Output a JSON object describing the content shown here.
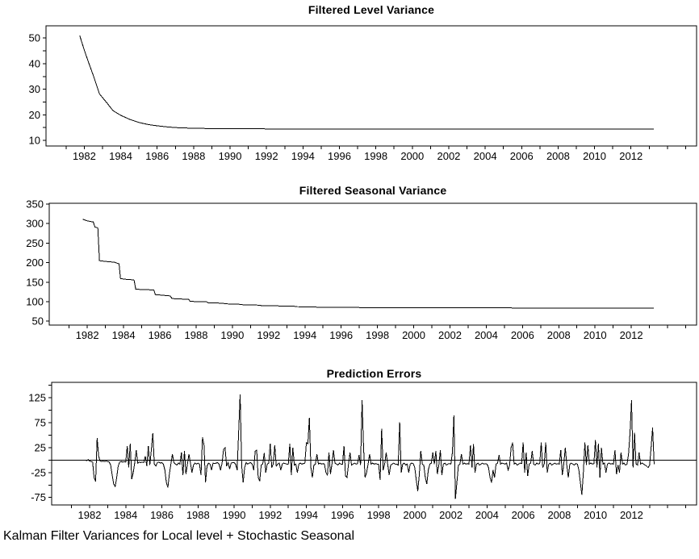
{
  "caption": "Kalman Filter Variances for Local level + Stochastic Seasonal",
  "style": {
    "background": "#ffffff",
    "line_color": "#000000",
    "axis_color": "#000000",
    "text_color": "#000000"
  },
  "chart_data": [
    {
      "type": "line",
      "title": "Filtered Level Variance",
      "xlabel": "",
      "ylabel": "",
      "xlim": [
        1979.9,
        2015.6
      ],
      "ylim": [
        7.8,
        54.8
      ],
      "grid": false,
      "legend": "none",
      "x_ticks": {
        "start": 1981,
        "end": 2015,
        "step": 1
      },
      "x_labels": [
        1982,
        1984,
        1986,
        1988,
        1990,
        1992,
        1994,
        1996,
        1998,
        2000,
        2002,
        2004,
        2006,
        2008,
        2010,
        2012
      ],
      "y_ticks": {
        "start": 10,
        "end": 50,
        "step": 5
      },
      "y_labels": [
        10,
        20,
        30,
        40,
        50
      ],
      "zero_line": false,
      "series": [
        {
          "name": "filtered-level-variance",
          "points": [
            [
              1981.75,
              51
            ],
            [
              1982.0,
              45.3
            ],
            [
              1982.25,
              40.2
            ],
            [
              1982.5,
              35.3
            ],
            [
              1982.83,
              28.2
            ],
            [
              1983.25,
              24.6
            ],
            [
              1983.58,
              21.6
            ],
            [
              1984.0,
              19.8
            ],
            [
              1984.5,
              18.2
            ],
            [
              1985.0,
              17.0
            ],
            [
              1985.5,
              16.2
            ],
            [
              1986.0,
              15.7
            ],
            [
              1986.5,
              15.3
            ],
            [
              1987.0,
              15.0
            ],
            [
              1987.5,
              14.85
            ],
            [
              1988.0,
              14.75
            ],
            [
              1989.0,
              14.6
            ],
            [
              1990.0,
              14.55
            ],
            [
              1992.0,
              14.5
            ],
            [
              2013.25,
              14.5
            ]
          ]
        }
      ]
    },
    {
      "type": "line",
      "title": "Filtered Seasonal Variance",
      "xlabel": "",
      "ylabel": "",
      "xlim": [
        1979.9,
        2015.6
      ],
      "ylim": [
        40,
        352
      ],
      "grid": false,
      "legend": "none",
      "x_ticks": {
        "start": 1981,
        "end": 2015,
        "step": 1
      },
      "x_labels": [
        1982,
        1984,
        1986,
        1988,
        1990,
        1992,
        1994,
        1996,
        1998,
        2000,
        2002,
        2004,
        2006,
        2008,
        2010,
        2012
      ],
      "y_ticks": {
        "start": 50,
        "end": 350,
        "step": 50
      },
      "y_labels": [
        50,
        100,
        150,
        200,
        250,
        300,
        350
      ],
      "zero_line": false,
      "series": [
        {
          "name": "filtered-seasonal-variance",
          "points": [
            [
              1981.75,
              311
            ],
            [
              1982.0,
              307
            ],
            [
              1982.33,
              304
            ],
            [
              1982.42,
              291
            ],
            [
              1982.58,
              289
            ],
            [
              1982.67,
              205
            ],
            [
              1983.0,
              203
            ],
            [
              1983.5,
              201
            ],
            [
              1983.67,
              198
            ],
            [
              1983.75,
              197
            ],
            [
              1983.83,
              159
            ],
            [
              1984.17,
              157
            ],
            [
              1984.5,
              156
            ],
            [
              1984.58,
              155
            ],
            [
              1984.67,
              132
            ],
            [
              1985.0,
              131
            ],
            [
              1985.67,
              130
            ],
            [
              1985.75,
              118
            ],
            [
              1986.0,
              117
            ],
            [
              1986.5,
              115
            ],
            [
              1986.58,
              114
            ],
            [
              1986.67,
              108
            ],
            [
              1987.0,
              107
            ],
            [
              1987.58,
              106
            ],
            [
              1987.67,
              101
            ],
            [
              1988.0,
              100
            ],
            [
              1988.58,
              99.5
            ],
            [
              1988.67,
              97
            ],
            [
              1989.5,
              96
            ],
            [
              1989.58,
              94.5
            ],
            [
              1990.5,
              93
            ],
            [
              1990.58,
              92
            ],
            [
              1991.5,
              91
            ],
            [
              1991.58,
              90
            ],
            [
              1992.5,
              89.5
            ],
            [
              1992.58,
              88.5
            ],
            [
              1993.5,
              88
            ],
            [
              1993.58,
              87
            ],
            [
              1994.5,
              86.8
            ],
            [
              1994.58,
              86
            ],
            [
              1995.58,
              85.5
            ],
            [
              1996.58,
              85
            ],
            [
              1998.58,
              84.7
            ],
            [
              2000.58,
              84.5
            ],
            [
              2005.33,
              84.3
            ],
            [
              2005.42,
              83.8
            ],
            [
              2013.25,
              83.7
            ]
          ]
        }
      ]
    },
    {
      "type": "line",
      "title": "Prediction Errors",
      "xlabel": "",
      "ylabel": "",
      "xlim": [
        1979.9,
        2015.6
      ],
      "ylim": [
        -90,
        156
      ],
      "grid": false,
      "legend": "none",
      "x_ticks": {
        "start": 1981,
        "end": 2015,
        "step": 1
      },
      "x_labels": [
        1982,
        1984,
        1986,
        1988,
        1990,
        1992,
        1994,
        1996,
        1998,
        2000,
        2002,
        2004,
        2006,
        2008,
        2010,
        2012
      ],
      "y_ticks": {
        "start": -75,
        "end": 150,
        "step": 25
      },
      "y_labels": [
        -75,
        -25,
        25,
        75,
        125
      ],
      "zero_line": true,
      "series": [
        {
          "name": "prediction-errors",
          "x_start": 1981.75,
          "x_step": 0.0833333,
          "values": [
            0,
            -1,
            1,
            -2,
            -3,
            -4,
            -35,
            -43,
            44,
            8,
            -2,
            -3,
            -2,
            -3,
            -2,
            -3,
            -4,
            -10,
            -30,
            -48,
            -53,
            -35,
            -12,
            -4,
            -3,
            -4,
            -3,
            -4,
            28,
            -15,
            33,
            -38,
            -25,
            -5,
            20,
            -6,
            -4,
            -5,
            -4,
            -5,
            8,
            -12,
            28,
            -10,
            20,
            54,
            -8,
            -12,
            -5,
            -4,
            -6,
            -5,
            -8,
            -20,
            -45,
            -55,
            -28,
            -8,
            12,
            -5,
            -8,
            -10,
            -6,
            -8,
            15,
            -30,
            18,
            -28,
            -8,
            12,
            -6,
            -25,
            -10,
            -6,
            -8,
            -6,
            -8,
            -30,
            46,
            30,
            -45,
            -12,
            -6,
            -8,
            -20,
            -6,
            -7,
            -6,
            -5,
            -8,
            -20,
            -6,
            22,
            25,
            -12,
            -5,
            -18,
            -6,
            -5,
            -5,
            -8,
            -20,
            55,
            132,
            -10,
            -45,
            -15,
            -5,
            -8,
            -6,
            -5,
            -8,
            -20,
            18,
            20,
            -35,
            -42,
            -10,
            -8,
            14,
            -25,
            -8,
            -6,
            33,
            -15,
            -8,
            30,
            -12,
            -8,
            -6,
            -20,
            -8,
            -6,
            -7,
            -8,
            -8,
            33,
            -30,
            25,
            -10,
            -8,
            -25,
            -8,
            -6,
            -8,
            -7,
            -6,
            35,
            33,
            85,
            -15,
            -35,
            -10,
            -8,
            12,
            -8,
            -6,
            -8,
            -7,
            -8,
            -25,
            -30,
            15,
            -28,
            -8,
            20,
            -6,
            -8,
            -10,
            -6,
            -8,
            -8,
            28,
            -32,
            -35,
            -8,
            15,
            -10,
            -8,
            -6,
            -8,
            -7,
            10,
            -10,
            120,
            25,
            -35,
            -25,
            -8,
            12,
            -8,
            -6,
            -8,
            -7,
            -8,
            -8,
            -40,
            63,
            -20,
            -8,
            15,
            -8,
            -30,
            -10,
            -8,
            -6,
            -8,
            -8,
            -10,
            76,
            -25,
            -8,
            -6,
            -10,
            -8,
            -25,
            -8,
            -6,
            -7,
            -15,
            -40,
            -62,
            -30,
            18,
            -8,
            -10,
            -35,
            -48,
            -20,
            -8,
            -6,
            15,
            -8,
            18,
            -28,
            -10,
            20,
            -30,
            -8,
            -6,
            -10,
            -8,
            -7,
            -8,
            15,
            90,
            -78,
            -45,
            -10,
            -8,
            12,
            -8,
            -6,
            -8,
            -7,
            -8,
            30,
            -15,
            32,
            -25,
            -8,
            -6,
            -10,
            -8,
            -6,
            -8,
            -7,
            -8,
            -15,
            -35,
            -45,
            -20,
            -35,
            -8,
            -6,
            10,
            -8,
            -6,
            -7,
            -8,
            -6,
            -20,
            -10,
            25,
            35,
            -8,
            -6,
            -10,
            -8,
            -6,
            -7,
            35,
            -25,
            15,
            -32,
            -8,
            -6,
            18,
            -8,
            -10,
            -6,
            -8,
            -7,
            35,
            -15,
            -8,
            35,
            -25,
            -8,
            -6,
            -10,
            -8,
            -6,
            -8,
            -7,
            -8,
            20,
            -30,
            -8,
            25,
            -10,
            -35,
            -8,
            -6,
            -8,
            -10,
            -7,
            -8,
            -20,
            -45,
            -70,
            -25,
            35,
            -10,
            30,
            -8,
            -6,
            -8,
            -7,
            40,
            -15,
            33,
            -35,
            25,
            -8,
            -6,
            -25,
            -8,
            -6,
            -8,
            -7,
            -8,
            20,
            -28,
            -10,
            -25,
            15,
            -8,
            -6,
            -10,
            -8,
            12,
            55,
            120,
            -15,
            55,
            -8,
            -10,
            15,
            -8,
            -6,
            -8,
            -10,
            -12,
            -15,
            -10,
            25,
            65,
            -8
          ]
        }
      ]
    }
  ]
}
